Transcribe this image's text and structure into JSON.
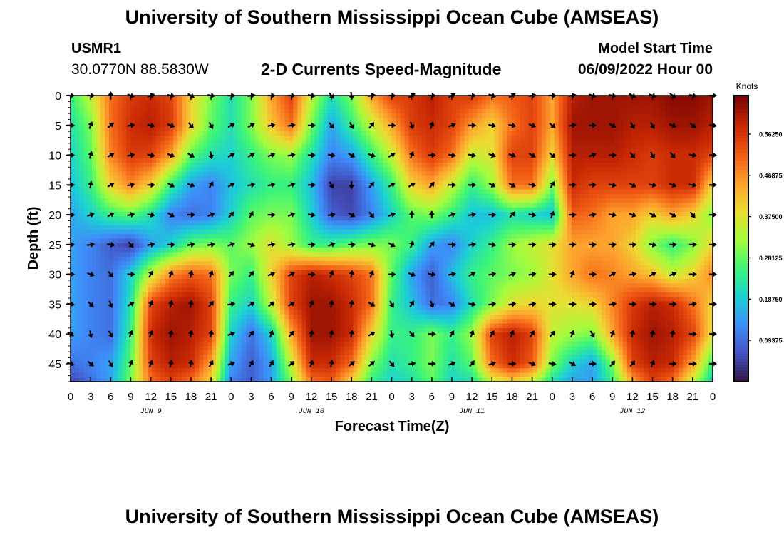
{
  "header": {
    "title": "University of Southern Mississippi Ocean Cube (AMSEAS)",
    "station_id": "USMR1",
    "station_coords": "30.0770N  88.5830W",
    "chart_title": "2-D Currents Speed-Magnitude",
    "start_label": "Model Start Time",
    "start_value": "06/09/2022 Hour 00"
  },
  "footer": {
    "title": "University of Southern Mississippi Ocean Cube (AMSEAS)"
  },
  "chart_data": {
    "type": "heatmap",
    "title": "2-D Currents Speed-Magnitude",
    "xlabel": "Forecast Time(Z)",
    "ylabel": "Depth (ft)",
    "colorbar_label": "Knots",
    "colorbar_ticks": [
      0.09375,
      0.1875,
      0.28125,
      0.375,
      0.46875,
      0.5625
    ],
    "colorbar_tick_labels": [
      "0.09375",
      "0.18750",
      "0.28125",
      "0.37500",
      "0.46875",
      "0.56250"
    ],
    "colorbar_range": [
      0.0,
      0.65
    ],
    "x_range_hours": [
      0,
      96
    ],
    "x_tick_labels": [
      "0",
      "3",
      "6",
      "9",
      "12",
      "15",
      "18",
      "21",
      "0",
      "3",
      "6",
      "9",
      "12",
      "15",
      "18",
      "21",
      "0",
      "3",
      "6",
      "9",
      "12",
      "15",
      "18",
      "21",
      "0",
      "3",
      "6",
      "9",
      "12",
      "15",
      "18",
      "21",
      "0"
    ],
    "day_labels": [
      "JUN 9",
      "JUN 10",
      "JUN 11",
      "JUN 12"
    ],
    "day_label_hours": [
      12,
      36,
      60,
      84
    ],
    "y_range_ft": [
      0,
      48
    ],
    "y_ticks": [
      0,
      5,
      10,
      15,
      20,
      25,
      30,
      35,
      40,
      45
    ],
    "speed_depths_ft": [
      0,
      5,
      10,
      15,
      20,
      25,
      30,
      35,
      40,
      45,
      48
    ],
    "speed_hours": [
      0,
      3,
      6,
      9,
      12,
      15,
      18,
      21,
      24,
      27,
      30,
      33,
      36,
      39,
      42,
      45,
      48,
      51,
      54,
      57,
      60,
      63,
      66,
      69,
      72,
      75,
      78,
      81,
      84,
      87,
      90,
      93,
      96
    ],
    "speed_knots": [
      [
        0.25,
        0.35,
        0.5,
        0.56,
        0.58,
        0.55,
        0.4,
        0.3,
        0.22,
        0.3,
        0.45,
        0.55,
        0.35,
        0.22,
        0.3,
        0.45,
        0.55,
        0.56,
        0.6,
        0.55,
        0.56,
        0.5,
        0.52,
        0.55,
        0.45,
        0.6,
        0.62,
        0.62,
        0.62,
        0.62,
        0.64,
        0.64,
        0.62
      ],
      [
        0.22,
        0.3,
        0.5,
        0.58,
        0.6,
        0.56,
        0.4,
        0.28,
        0.22,
        0.3,
        0.42,
        0.5,
        0.3,
        0.15,
        0.25,
        0.35,
        0.45,
        0.56,
        0.58,
        0.55,
        0.46,
        0.4,
        0.5,
        0.55,
        0.45,
        0.62,
        0.62,
        0.62,
        0.6,
        0.6,
        0.62,
        0.62,
        0.6
      ],
      [
        0.2,
        0.28,
        0.48,
        0.56,
        0.55,
        0.45,
        0.28,
        0.22,
        0.2,
        0.25,
        0.3,
        0.32,
        0.22,
        0.12,
        0.15,
        0.25,
        0.35,
        0.5,
        0.56,
        0.5,
        0.35,
        0.38,
        0.55,
        0.55,
        0.4,
        0.6,
        0.6,
        0.6,
        0.58,
        0.56,
        0.58,
        0.58,
        0.55
      ],
      [
        0.18,
        0.25,
        0.4,
        0.48,
        0.4,
        0.25,
        0.15,
        0.12,
        0.18,
        0.22,
        0.25,
        0.25,
        0.18,
        0.05,
        0.05,
        0.15,
        0.25,
        0.4,
        0.45,
        0.35,
        0.25,
        0.32,
        0.5,
        0.5,
        0.3,
        0.58,
        0.55,
        0.55,
        0.55,
        0.55,
        0.58,
        0.58,
        0.4
      ],
      [
        0.15,
        0.2,
        0.25,
        0.28,
        0.22,
        0.12,
        0.1,
        0.12,
        0.2,
        0.28,
        0.3,
        0.3,
        0.2,
        0.08,
        0.06,
        0.12,
        0.2,
        0.28,
        0.3,
        0.25,
        0.18,
        0.18,
        0.22,
        0.2,
        0.18,
        0.52,
        0.5,
        0.45,
        0.45,
        0.4,
        0.45,
        0.4,
        0.3
      ],
      [
        0.15,
        0.12,
        0.08,
        0.05,
        0.15,
        0.2,
        0.28,
        0.3,
        0.28,
        0.32,
        0.38,
        0.32,
        0.25,
        0.25,
        0.28,
        0.3,
        0.3,
        0.25,
        0.15,
        0.12,
        0.2,
        0.25,
        0.32,
        0.35,
        0.38,
        0.45,
        0.45,
        0.45,
        0.4,
        0.3,
        0.25,
        0.3,
        0.4
      ],
      [
        0.15,
        0.12,
        0.1,
        0.2,
        0.35,
        0.48,
        0.52,
        0.5,
        0.3,
        0.25,
        0.4,
        0.55,
        0.6,
        0.58,
        0.55,
        0.5,
        0.28,
        0.15,
        0.08,
        0.18,
        0.25,
        0.28,
        0.3,
        0.32,
        0.38,
        0.45,
        0.5,
        0.48,
        0.45,
        0.42,
        0.35,
        0.4,
        0.48
      ],
      [
        0.15,
        0.12,
        0.1,
        0.22,
        0.55,
        0.6,
        0.62,
        0.55,
        0.25,
        0.2,
        0.35,
        0.55,
        0.62,
        0.62,
        0.58,
        0.5,
        0.25,
        0.18,
        0.1,
        0.12,
        0.22,
        0.3,
        0.38,
        0.4,
        0.38,
        0.38,
        0.4,
        0.48,
        0.56,
        0.6,
        0.58,
        0.5,
        0.4
      ],
      [
        0.15,
        0.12,
        0.1,
        0.25,
        0.58,
        0.62,
        0.6,
        0.55,
        0.2,
        0.1,
        0.2,
        0.45,
        0.62,
        0.62,
        0.58,
        0.4,
        0.25,
        0.25,
        0.3,
        0.25,
        0.32,
        0.55,
        0.6,
        0.55,
        0.35,
        0.32,
        0.3,
        0.45,
        0.58,
        0.62,
        0.6,
        0.55,
        0.38
      ],
      [
        0.1,
        0.12,
        0.15,
        0.28,
        0.55,
        0.6,
        0.58,
        0.45,
        0.15,
        0.08,
        0.15,
        0.35,
        0.58,
        0.58,
        0.5,
        0.3,
        0.22,
        0.25,
        0.3,
        0.22,
        0.28,
        0.5,
        0.58,
        0.52,
        0.3,
        0.2,
        0.15,
        0.3,
        0.55,
        0.6,
        0.58,
        0.45,
        0.25
      ],
      [
        0.05,
        0.1,
        0.15,
        0.3,
        0.5,
        0.55,
        0.5,
        0.4,
        0.12,
        0.08,
        0.15,
        0.3,
        0.5,
        0.52,
        0.4,
        0.25,
        0.2,
        0.22,
        0.28,
        0.2,
        0.22,
        0.35,
        0.4,
        0.35,
        0.22,
        0.15,
        0.15,
        0.25,
        0.45,
        0.55,
        0.5,
        0.35,
        0.2
      ]
    ],
    "arrow_depths_ft": [
      0,
      5,
      10,
      15,
      20,
      25,
      30,
      35,
      40,
      45
    ],
    "arrow_directions_deg": [
      [
        90,
        90,
        0,
        110,
        70,
        100,
        120,
        100,
        90,
        80,
        90,
        90,
        100,
        140,
        170,
        80,
        90,
        60,
        90,
        60,
        90,
        110,
        60,
        80,
        90,
        80,
        110,
        100,
        120,
        110,
        130,
        100,
        90
      ],
      [
        90,
        20,
        50,
        80,
        100,
        110,
        140,
        150,
        60,
        60,
        80,
        80,
        90,
        140,
        150,
        40,
        90,
        160,
        20,
        70,
        90,
        100,
        100,
        110,
        130,
        80,
        90,
        120,
        150,
        150,
        110,
        130,
        100
      ],
      [
        90,
        15,
        60,
        80,
        100,
        110,
        120,
        170,
        60,
        60,
        70,
        80,
        90,
        100,
        120,
        110,
        60,
        20,
        90,
        100,
        100,
        110,
        110,
        120,
        130,
        90,
        70,
        90,
        140,
        150,
        140,
        100,
        90
      ],
      [
        90,
        10,
        60,
        80,
        90,
        120,
        110,
        30,
        60,
        80,
        80,
        70,
        90,
        150,
        180,
        40,
        60,
        60,
        40,
        90,
        90,
        120,
        120,
        100,
        30,
        90,
        90,
        100,
        120,
        100,
        110,
        100,
        90
      ],
      [
        90,
        70,
        60,
        80,
        100,
        120,
        90,
        70,
        40,
        30,
        90,
        70,
        100,
        80,
        120,
        140,
        70,
        0,
        0,
        70,
        80,
        90,
        40,
        100,
        20,
        90,
        80,
        100,
        110,
        120,
        120,
        140,
        90
      ],
      [
        90,
        80,
        100,
        140,
        80,
        90,
        80,
        80,
        70,
        110,
        80,
        80,
        90,
        70,
        90,
        110,
        120,
        20,
        40,
        90,
        80,
        100,
        90,
        90,
        90,
        90,
        90,
        90,
        90,
        100,
        90,
        90,
        90
      ],
      [
        90,
        110,
        140,
        90,
        30,
        20,
        10,
        20,
        40,
        40,
        70,
        60,
        90,
        20,
        10,
        20,
        90,
        110,
        100,
        80,
        60,
        80,
        70,
        80,
        90,
        20,
        90,
        60,
        80,
        60,
        70,
        90,
        90
      ],
      [
        100,
        130,
        160,
        60,
        20,
        10,
        10,
        40,
        80,
        60,
        50,
        60,
        20,
        10,
        10,
        120,
        150,
        30,
        160,
        120,
        100,
        80,
        80,
        80,
        90,
        90,
        90,
        80,
        90,
        90,
        90,
        80,
        90
      ],
      [
        120,
        170,
        150,
        20,
        20,
        10,
        10,
        10,
        70,
        40,
        20,
        40,
        10,
        10,
        10,
        60,
        170,
        140,
        90,
        30,
        20,
        30,
        20,
        30,
        40,
        20,
        150,
        20,
        10,
        10,
        10,
        90,
        90
      ],
      [
        110,
        130,
        150,
        20,
        20,
        10,
        10,
        30,
        70,
        30,
        30,
        50,
        20,
        10,
        50,
        50,
        140,
        80,
        90,
        70,
        40,
        70,
        90,
        110,
        100,
        120,
        90,
        40,
        40,
        20,
        90,
        90,
        90
      ]
    ]
  }
}
